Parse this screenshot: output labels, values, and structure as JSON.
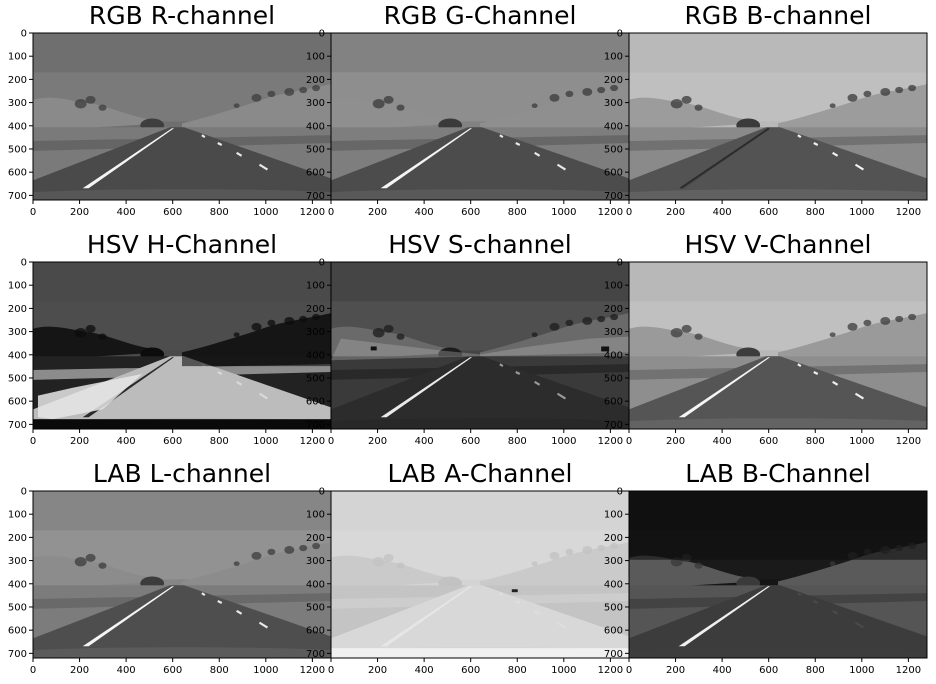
{
  "figure": {
    "panels": [
      {
        "title": "RGB R-channel",
        "scene": "r"
      },
      {
        "title": "RGB G-Channel",
        "scene": "g"
      },
      {
        "title": "RGB B-channel",
        "scene": "b"
      },
      {
        "title": "HSV H-Channel",
        "scene": "h"
      },
      {
        "title": "HSV S-channel",
        "scene": "s"
      },
      {
        "title": "HSV V-Channel",
        "scene": "v"
      },
      {
        "title": "LAB L-channel",
        "scene": "l"
      },
      {
        "title": "LAB A-Channel",
        "scene": "a"
      },
      {
        "title": "LAB B-Channel",
        "scene": "lb"
      }
    ],
    "x_ticks": [
      "0",
      "200",
      "400",
      "600",
      "800",
      "1000",
      "1200"
    ],
    "y_ticks": [
      "0",
      "100",
      "200",
      "300",
      "400",
      "500",
      "600",
      "700"
    ],
    "image_width": 1280,
    "image_height": 720,
    "x_tick_values": [
      0,
      200,
      400,
      600,
      800,
      1000,
      1200
    ],
    "y_tick_values": [
      0,
      100,
      200,
      300,
      400,
      500,
      600,
      700
    ]
  }
}
